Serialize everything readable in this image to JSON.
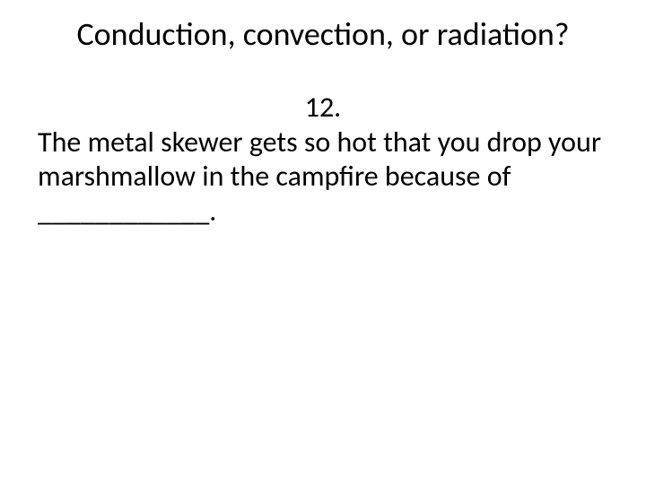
{
  "colors": {
    "background": "#ffffff",
    "text": "#000000"
  },
  "typography": {
    "family": "Calibri",
    "title_size_pt": 36,
    "body_size_pt": 32
  },
  "title": "Conduction, convection, or radiation?",
  "question_number": "12.",
  "body_text": "The metal skewer gets so hot that you drop your marshmallow in the campfire because of ____________."
}
